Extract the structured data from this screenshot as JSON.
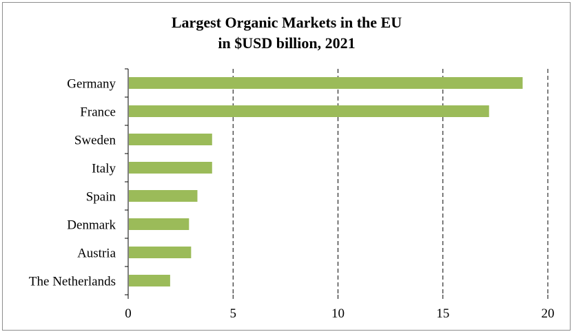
{
  "chart_data": {
    "type": "bar",
    "orientation": "horizontal",
    "title": "Largest Organic Markets in the EU",
    "subtitle": "in $USD billion, 2021",
    "categories": [
      "Germany",
      "France",
      "Sweden",
      "Italy",
      "Spain",
      "Denmark",
      "Austria",
      "The Netherlands"
    ],
    "values": [
      18.8,
      17.2,
      4.0,
      4.0,
      3.3,
      2.9,
      3.0,
      2.0
    ],
    "xlim": [
      0,
      20
    ],
    "xticks": [
      "0",
      "5",
      "10",
      "15",
      "20"
    ],
    "xlabel": "",
    "ylabel": "",
    "grid": "dashed vertical",
    "bar_color": "#9bbb59",
    "legend": "none"
  }
}
